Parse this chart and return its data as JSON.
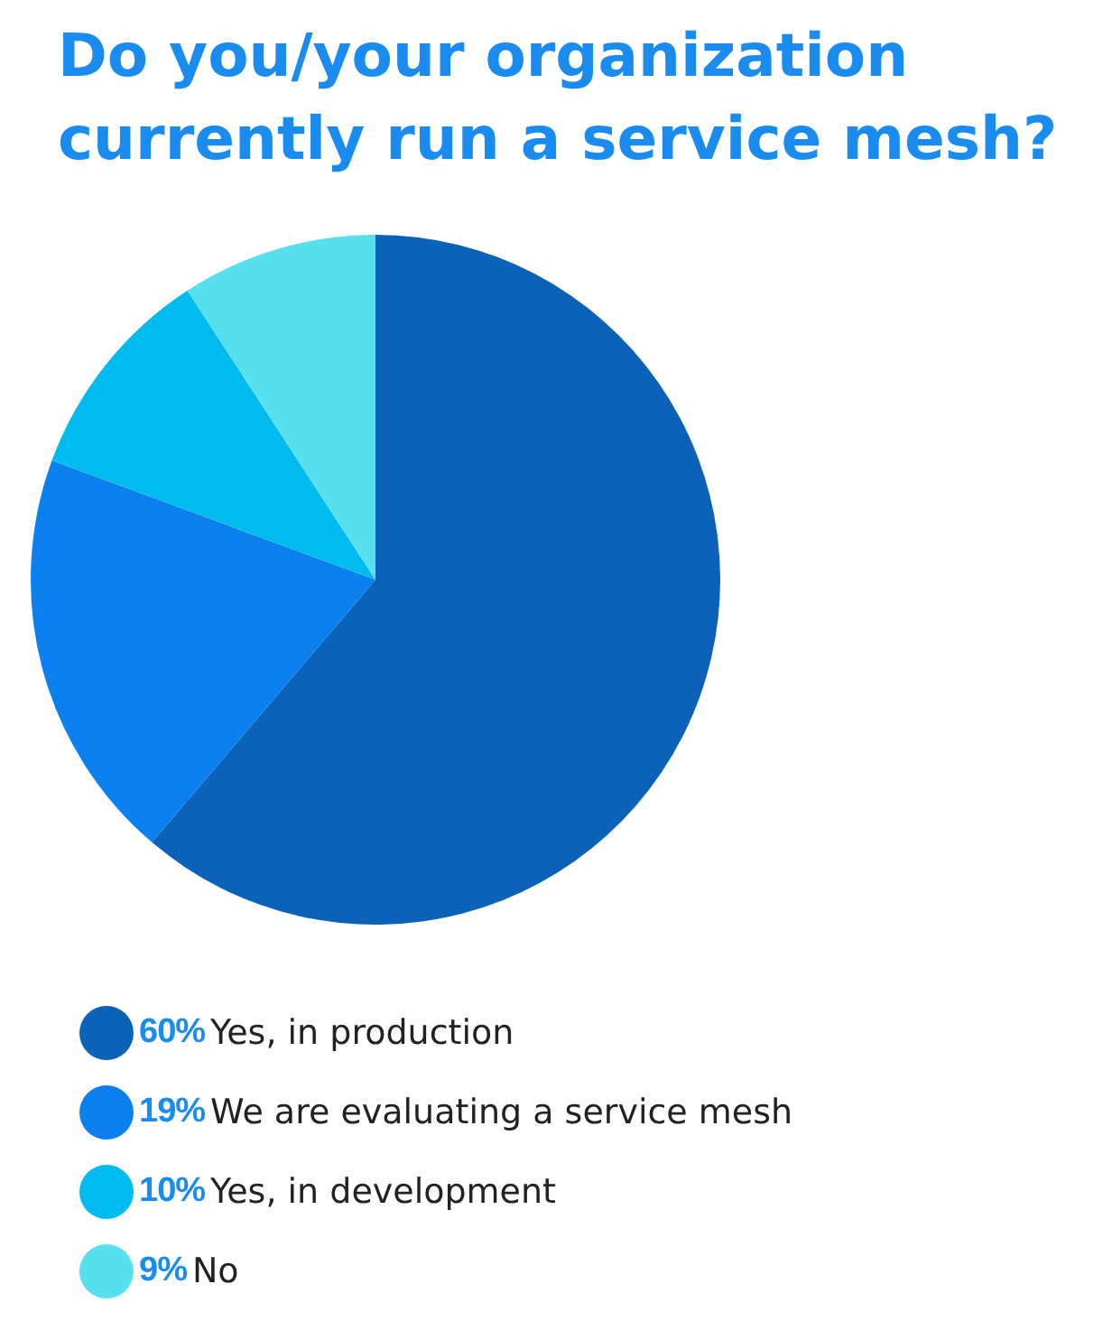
{
  "chart_data": {
    "type": "pie",
    "title": "Do you/your organization currently run a service mesh?",
    "categories": [
      "Yes, in production",
      "We are evaluating a service mesh",
      "Yes, in development",
      "No"
    ],
    "values": [
      60,
      19,
      10,
      9
    ],
    "value_labels": [
      "60%",
      "19%",
      "10%",
      "9%"
    ],
    "colors": [
      "#0b62b8",
      "#0c80ef",
      "#00bcee",
      "#58e0ee"
    ],
    "legend": "bottom"
  }
}
